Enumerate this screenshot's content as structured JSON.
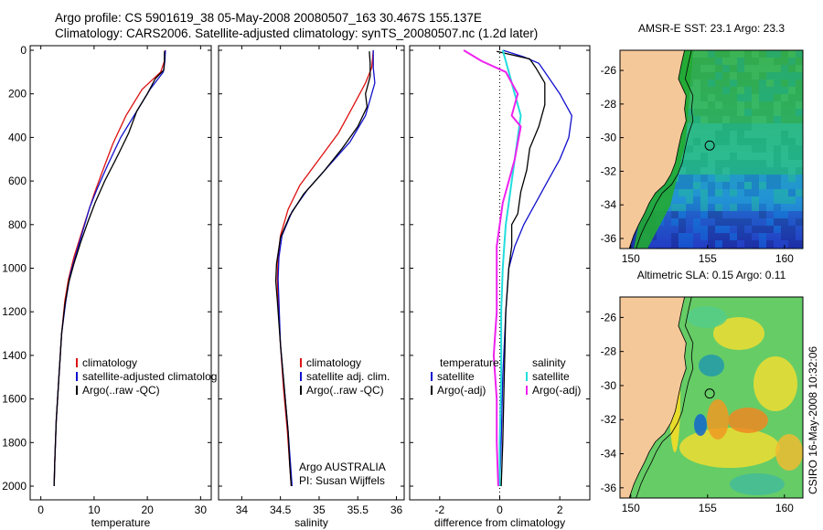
{
  "title_line1": "Argo profile: CS 5901619_38 05-May-2008 20080507_163 30.467S 155.137E",
  "title_line2": "Climatology: CARS2006. Satellite-adjusted climatology: synTS_20080507.nc (1.2d later)",
  "side_stamp": "CSIRO 16-May-2008 10:32:06",
  "colors": {
    "climatology": "#dd1111",
    "satellite": "#1111cc",
    "argo": "#000000",
    "cyan": "#22dddd",
    "magenta": "#ee22ee",
    "land": "#f5c89a"
  },
  "chart_data": [
    {
      "type": "line",
      "xlabel": "temperature",
      "xlim": [
        -2,
        32
      ],
      "xticks": [
        0,
        10,
        20,
        30
      ],
      "ylim": [
        0,
        2100
      ],
      "yticks": [
        0,
        200,
        400,
        600,
        800,
        1000,
        1200,
        1400,
        1600,
        1800,
        2000
      ],
      "legend": [
        "climatology",
        "satellite-adjusted climatolog",
        "Argo(..raw -QC)"
      ],
      "series": [
        {
          "name": "climatology",
          "color": "#dd1111",
          "points": [
            [
              23.3,
              0
            ],
            [
              23.2,
              50
            ],
            [
              22.5,
              100
            ],
            [
              19,
              180
            ],
            [
              16,
              300
            ],
            [
              13.5,
              430
            ],
            [
              11.5,
              560
            ],
            [
              10,
              660
            ],
            [
              8.8,
              750
            ],
            [
              7.5,
              850
            ],
            [
              6.2,
              950
            ],
            [
              5.2,
              1050
            ],
            [
              4.5,
              1150
            ],
            [
              3.9,
              1300
            ],
            [
              3.4,
              1500
            ],
            [
              2.9,
              1700
            ],
            [
              2.6,
              1900
            ],
            [
              2.5,
              2000
            ]
          ]
        },
        {
          "name": "satellite-adjusted climatolog",
          "color": "#1111cc",
          "points": [
            [
              23.4,
              0
            ],
            [
              23.3,
              50
            ],
            [
              23,
              100
            ],
            [
              20.5,
              180
            ],
            [
              18,
              280
            ],
            [
              15,
              400
            ],
            [
              12.5,
              530
            ],
            [
              10.5,
              640
            ],
            [
              9.2,
              720
            ],
            [
              8,
              820
            ],
            [
              6.8,
              920
            ],
            [
              5.5,
              1030
            ],
            [
              4.7,
              1150
            ],
            [
              3.9,
              1300
            ],
            [
              3.4,
              1500
            ],
            [
              2.9,
              1700
            ],
            [
              2.6,
              1900
            ],
            [
              2.5,
              2000
            ]
          ]
        },
        {
          "name": "Argo(..raw -QC)",
          "color": "#000000",
          "points": [
            [
              23.2,
              5
            ],
            [
              23.2,
              50
            ],
            [
              23.1,
              90
            ],
            [
              21.5,
              130
            ],
            [
              20,
              200
            ],
            [
              18,
              280
            ],
            [
              16.5,
              380
            ],
            [
              14.5,
              480
            ],
            [
              12,
              600
            ],
            [
              10.2,
              700
            ],
            [
              8.8,
              790
            ],
            [
              7.5,
              880
            ],
            [
              6.2,
              980
            ],
            [
              5.2,
              1070
            ],
            [
              4.5,
              1170
            ],
            [
              3.9,
              1300
            ],
            [
              3.4,
              1500
            ],
            [
              2.9,
              1700
            ],
            [
              2.6,
              1900
            ],
            [
              2.5,
              2000
            ]
          ]
        }
      ]
    },
    {
      "type": "line",
      "xlabel": "salinity",
      "xlim": [
        33.7,
        36.1
      ],
      "xticks": [
        34,
        34.5,
        35,
        35.5,
        36
      ],
      "ylim": [
        0,
        2100
      ],
      "legend": [
        "climatology",
        "satellite adj. clim.",
        "Argo(..raw -QC)"
      ],
      "annotations": [
        "Argo AUSTRALIA",
        "PI: Susan Wijffels"
      ],
      "series": [
        {
          "name": "climatology",
          "color": "#dd1111",
          "points": [
            [
              35.7,
              0
            ],
            [
              35.68,
              80
            ],
            [
              35.6,
              150
            ],
            [
              35.45,
              250
            ],
            [
              35.25,
              380
            ],
            [
              35.0,
              500
            ],
            [
              34.75,
              620
            ],
            [
              34.6,
              730
            ],
            [
              34.5,
              850
            ],
            [
              34.47,
              950
            ],
            [
              34.46,
              1050
            ],
            [
              34.47,
              1150
            ],
            [
              34.5,
              1350
            ],
            [
              34.54,
              1550
            ],
            [
              34.59,
              1750
            ],
            [
              34.62,
              1900
            ],
            [
              34.64,
              2000
            ]
          ]
        },
        {
          "name": "satellite adj. clim.",
          "color": "#1111cc",
          "points": [
            [
              35.7,
              0
            ],
            [
              35.7,
              80
            ],
            [
              35.72,
              150
            ],
            [
              35.6,
              300
            ],
            [
              35.4,
              420
            ],
            [
              35.1,
              540
            ],
            [
              34.85,
              640
            ],
            [
              34.65,
              740
            ],
            [
              34.52,
              850
            ],
            [
              34.48,
              950
            ],
            [
              34.47,
              1050
            ],
            [
              34.48,
              1150
            ],
            [
              34.5,
              1350
            ],
            [
              34.55,
              1550
            ],
            [
              34.6,
              1750
            ],
            [
              34.63,
              1900
            ],
            [
              34.65,
              2000
            ]
          ]
        },
        {
          "name": "Argo(..raw -QC)",
          "color": "#000000",
          "points": [
            [
              35.65,
              5
            ],
            [
              35.66,
              60
            ],
            [
              35.66,
              120
            ],
            [
              35.6,
              200
            ],
            [
              35.62,
              260
            ],
            [
              35.5,
              350
            ],
            [
              35.3,
              450
            ],
            [
              35.05,
              560
            ],
            [
              34.8,
              660
            ],
            [
              34.62,
              760
            ],
            [
              34.5,
              860
            ],
            [
              34.45,
              980
            ],
            [
              34.44,
              1060
            ],
            [
              34.46,
              1150
            ],
            [
              34.5,
              1350
            ],
            [
              34.55,
              1550
            ],
            [
              34.6,
              1750
            ],
            [
              34.62,
              1900
            ],
            [
              34.64,
              2000
            ]
          ]
        }
      ]
    },
    {
      "type": "line",
      "xlabel": "difference from climatology",
      "xlim": [
        -3,
        3
      ],
      "xticks": [
        -2,
        0,
        2
      ],
      "ylim": [
        0,
        2100
      ],
      "legend_left": [
        "temperature",
        "satellite",
        "Argo(-adj)"
      ],
      "legend_right": [
        "salinity",
        "satellite",
        "Argo(-adj)"
      ],
      "series": [
        {
          "name": "temperature satellite",
          "color": "#1111cc",
          "points": [
            [
              0.1,
              0
            ],
            [
              0.8,
              30
            ],
            [
              1.3,
              60
            ],
            [
              1.5,
              100
            ],
            [
              2.0,
              200
            ],
            [
              2.4,
              300
            ],
            [
              2.3,
              400
            ],
            [
              2.0,
              500
            ],
            [
              1.6,
              600
            ],
            [
              1.2,
              700
            ],
            [
              0.8,
              800
            ],
            [
              0.5,
              900
            ],
            [
              0.3,
              1000
            ],
            [
              0.2,
              1200
            ],
            [
              0.1,
              1500
            ],
            [
              0.05,
              1800
            ],
            [
              0.0,
              2000
            ]
          ]
        },
        {
          "name": "temperature Argo(-adj)",
          "color": "#000000",
          "points": [
            [
              -0.1,
              5
            ],
            [
              1.0,
              40
            ],
            [
              1.2,
              80
            ],
            [
              1.5,
              150
            ],
            [
              1.5,
              250
            ],
            [
              1.3,
              350
            ],
            [
              1.0,
              450
            ],
            [
              0.9,
              550
            ],
            [
              0.7,
              650
            ],
            [
              0.6,
              750
            ],
            [
              0.4,
              800
            ],
            [
              0.4,
              900
            ],
            [
              0.3,
              1000
            ],
            [
              0.2,
              1200
            ],
            [
              0.15,
              1500
            ],
            [
              0.1,
              1800
            ],
            [
              0.05,
              2000
            ]
          ]
        },
        {
          "name": "salinity satellite",
          "color": "#22dddd",
          "points": [
            [
              0.1,
              0
            ],
            [
              0.2,
              50
            ],
            [
              0.3,
              100
            ],
            [
              0.5,
              200
            ],
            [
              0.7,
              300
            ],
            [
              0.6,
              400
            ],
            [
              0.5,
              500
            ],
            [
              0.4,
              600
            ],
            [
              0.3,
              700
            ],
            [
              0.2,
              800
            ],
            [
              0.15,
              900
            ],
            [
              0.1,
              1000
            ],
            [
              0.05,
              1200
            ],
            [
              0.05,
              1500
            ],
            [
              0.0,
              1800
            ],
            [
              0.0,
              2000
            ]
          ]
        },
        {
          "name": "salinity Argo(-adj)",
          "color": "#ee22ee",
          "points": [
            [
              -1.2,
              0
            ],
            [
              -0.6,
              50
            ],
            [
              0.2,
              100
            ],
            [
              0.6,
              200
            ],
            [
              0.4,
              300
            ],
            [
              0.7,
              350
            ],
            [
              0.5,
              500
            ],
            [
              0.3,
              600
            ],
            [
              0.1,
              700
            ],
            [
              0.0,
              800
            ],
            [
              -0.1,
              900
            ],
            [
              -0.1,
              1000
            ],
            [
              -0.1,
              1200
            ],
            [
              -0.2,
              1400
            ],
            [
              -0.1,
              1600
            ],
            [
              -0.1,
              1800
            ],
            [
              -0.05,
              2000
            ]
          ]
        }
      ]
    },
    {
      "type": "heatmap",
      "title": "AMSR-E SST: 23.1 Argo: 23.3",
      "xticks": [
        150,
        155,
        160
      ],
      "yticks": [
        -26,
        -28,
        -30,
        -32,
        -34,
        -36
      ],
      "xlim": [
        149.3,
        161.2
      ],
      "ylim": [
        -36.6,
        -24.8
      ],
      "marker": [
        155.137,
        -30.467
      ]
    },
    {
      "type": "heatmap",
      "title": "Altimetric SLA: 0.15 Argo: 0.11",
      "xticks": [
        150,
        155,
        160
      ],
      "yticks": [
        -26,
        -28,
        -30,
        -32,
        -34,
        -36
      ],
      "xlim": [
        149.3,
        161.2
      ],
      "ylim": [
        -36.6,
        -24.8
      ],
      "marker": [
        155.137,
        -30.467
      ]
    }
  ]
}
